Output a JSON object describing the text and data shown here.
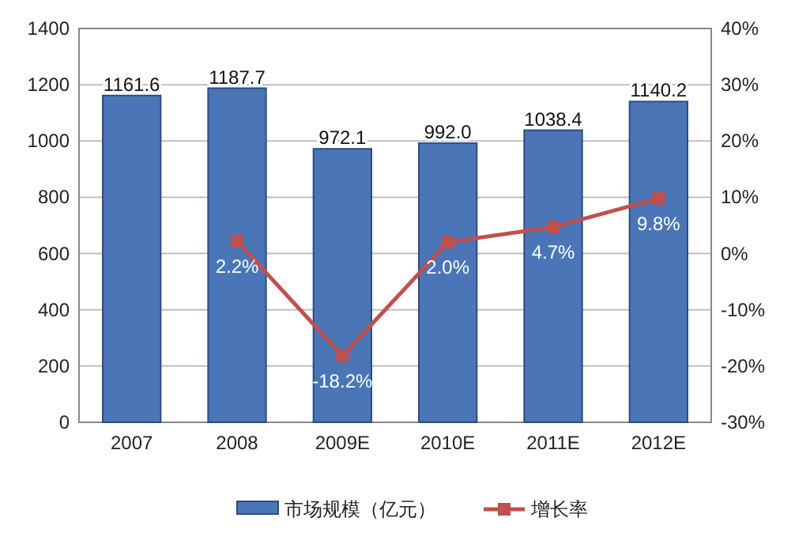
{
  "chart_data": {
    "type": "bar",
    "categories": [
      "2007",
      "2008",
      "2009E",
      "2010E",
      "2011E",
      "2012E"
    ],
    "series": [
      {
        "name": "市场规模（亿元）",
        "color": "#4a76b8",
        "values": [
          1161.6,
          1187.7,
          972.1,
          992.0,
          1038.4,
          1140.2
        ],
        "value_labels": [
          "1161.6",
          "1187.7",
          "972.1",
          "992.0",
          "1038.4",
          "1140.2"
        ]
      },
      {
        "name": "增长率",
        "type": "line",
        "axis": "y2",
        "color": "#c0504d",
        "values": [
          null,
          2.2,
          -18.2,
          2.0,
          4.7,
          9.8
        ],
        "value_labels": [
          null,
          "2.2%",
          "-18.2%",
          "2.0%",
          "4.7%",
          "9.8%"
        ]
      }
    ],
    "ylim": [
      0,
      1400
    ],
    "yticks": [
      0,
      200,
      400,
      600,
      800,
      1000,
      1200,
      1400
    ],
    "y2lim": [
      -30,
      40
    ],
    "y2ticks": [
      {
        "value": -30,
        "label": "-30%"
      },
      {
        "value": -20,
        "label": "-20%"
      },
      {
        "value": -10,
        "label": "-10%"
      },
      {
        "value": 0,
        "label": "0%"
      },
      {
        "value": 10,
        "label": "10%"
      },
      {
        "value": 20,
        "label": "20%"
      },
      {
        "value": 30,
        "label": "30%"
      },
      {
        "value": 40,
        "label": "40%"
      }
    ],
    "grid": "y",
    "legend": "bottom",
    "marker": "square"
  }
}
